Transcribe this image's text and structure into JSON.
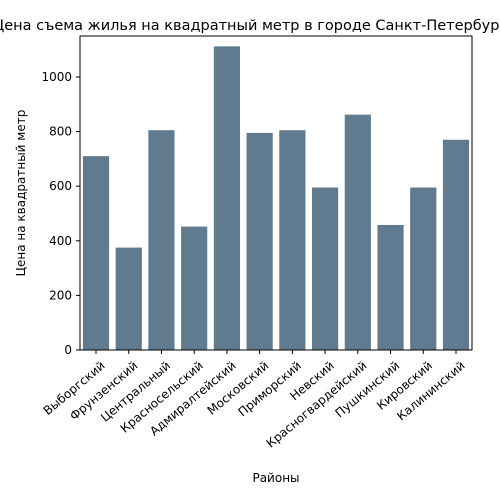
{
  "chart_data": {
    "type": "bar",
    "title": "Цена съема жилья на квадратный метр в городе Санкт-Петербург",
    "xlabel": "Районы",
    "ylabel": "Цена на квадратный метр",
    "categories": [
      "Выборгский",
      "Фрунзенский",
      "Центральный",
      "Красносельский",
      "Адмиралтейский",
      "Московский",
      "Приморский",
      "Невский",
      "Красногвардейский",
      "Пушкинский",
      "Кировский",
      "Калининский"
    ],
    "values": [
      710,
      375,
      805,
      452,
      1112,
      795,
      805,
      595,
      862,
      458,
      595,
      770
    ],
    "ylim": [
      0,
      1150
    ],
    "yticks": [
      0,
      200,
      400,
      600,
      800,
      1000
    ],
    "grid": false,
    "bar_color": "#607b8f"
  }
}
